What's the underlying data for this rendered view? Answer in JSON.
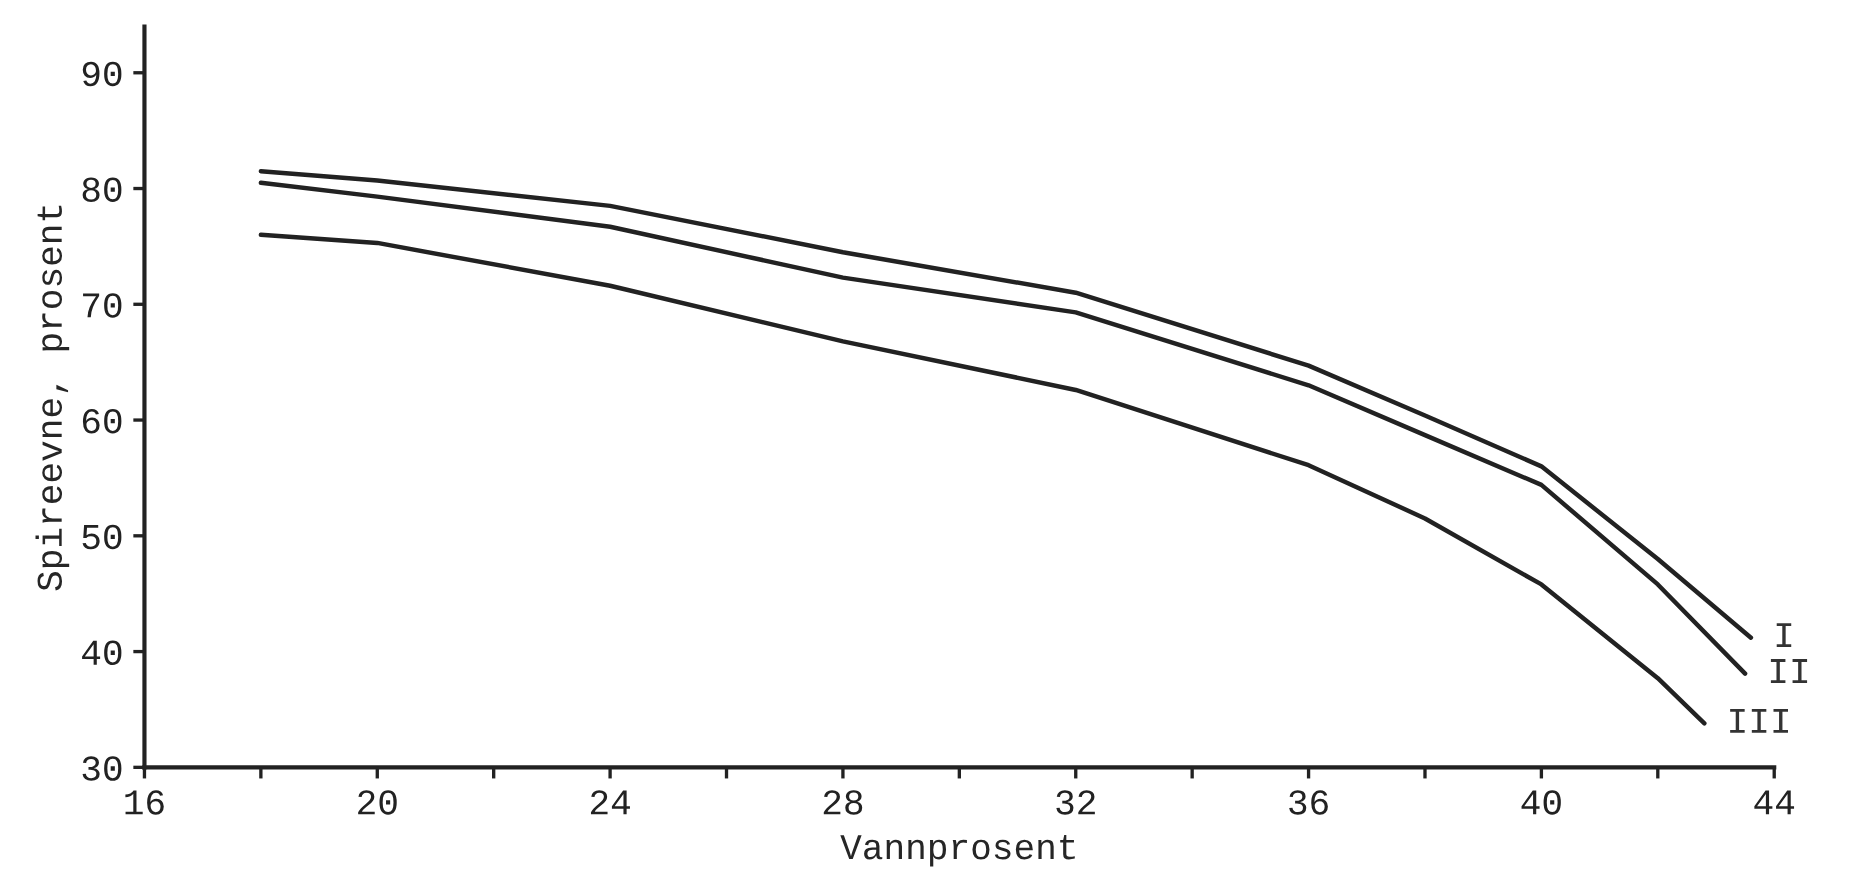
{
  "chart_data": {
    "type": "line",
    "xlabel": "Vannprosent",
    "ylabel": "Spireevne, prosent",
    "xlim": [
      16,
      44
    ],
    "ylim": [
      30,
      94
    ],
    "xticks": [
      16,
      {
        "value": 18,
        "label": null
      },
      20,
      {
        "value": 22,
        "label": null
      },
      24,
      {
        "value": 26,
        "label": null
      },
      28,
      {
        "value": 30,
        "label": null
      },
      32,
      {
        "value": 34,
        "label": null
      },
      36,
      {
        "value": 38,
        "label": null
      },
      40,
      {
        "value": 42,
        "label": null
      },
      44
    ],
    "yticks": [
      30,
      40,
      50,
      60,
      70,
      80,
      90
    ],
    "grid": false,
    "legend": false,
    "marker": "none",
    "line_style": "solid",
    "series": [
      {
        "name": "I",
        "color": "#222222",
        "x": [
          18,
          20,
          24,
          28,
          32,
          36,
          38,
          40,
          42,
          43.6
        ],
        "values": [
          81.5,
          80.7,
          78.5,
          74.5,
          71,
          64.7,
          60.4,
          56,
          48,
          41.2
        ]
      },
      {
        "name": "II",
        "color": "#222222",
        "x": [
          18,
          20,
          24,
          28,
          32,
          36,
          38,
          40,
          42,
          43.5
        ],
        "values": [
          80.5,
          79.3,
          76.7,
          72.3,
          69.3,
          63,
          58.7,
          54.4,
          45.8,
          38.1
        ]
      },
      {
        "name": "III",
        "color": "#222222",
        "x": [
          18,
          20,
          24,
          28,
          32,
          36,
          38,
          40,
          42,
          42.8
        ],
        "values": [
          76,
          75.3,
          71.6,
          66.8,
          62.6,
          56.1,
          51.5,
          45.8,
          37.7,
          33.8
        ]
      }
    ]
  }
}
